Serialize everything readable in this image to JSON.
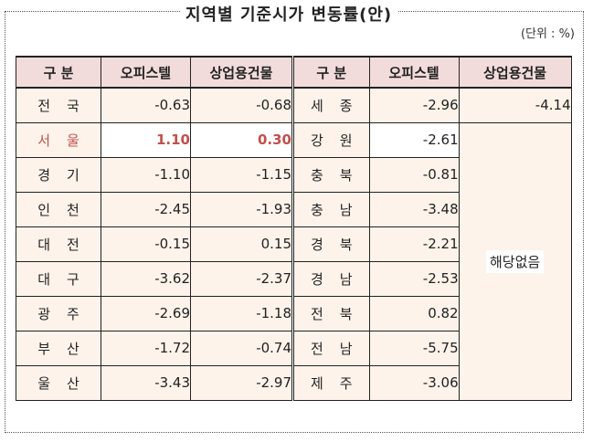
{
  "title": "지역별 기준시가 변동률(안)",
  "unit": "(단위 : %)",
  "headers": [
    "구 분",
    "오피스텔",
    "상업용건물",
    "구 분",
    "오피스텔",
    "상업용건물"
  ],
  "no_data_label": "해당없음",
  "left_rows": [
    {
      "region": "전국",
      "officetel": "-0.63",
      "commercial": "-0.68"
    },
    {
      "region": "서울",
      "officetel": "1.10",
      "commercial": "0.30"
    },
    {
      "region": "경기",
      "officetel": "-1.10",
      "commercial": "-1.15"
    },
    {
      "region": "인천",
      "officetel": "-2.45",
      "commercial": "-1.93"
    },
    {
      "region": "대전",
      "officetel": "-0.15",
      "commercial": "0.15"
    },
    {
      "region": "대구",
      "officetel": "-3.62",
      "commercial": "-2.37"
    },
    {
      "region": "광주",
      "officetel": "-2.69",
      "commercial": "-1.18"
    },
    {
      "region": "부산",
      "officetel": "-1.72",
      "commercial": "-0.74"
    },
    {
      "region": "울산",
      "officetel": "-3.43",
      "commercial": "-2.97"
    }
  ],
  "right_rows": [
    {
      "region": "세종",
      "officetel": "-2.96",
      "commercial": "-4.14"
    },
    {
      "region": "강원",
      "officetel": "-2.61"
    },
    {
      "region": "충북",
      "officetel": "-0.81"
    },
    {
      "region": "충남",
      "officetel": "-3.48"
    },
    {
      "region": "경북",
      "officetel": "-2.21"
    },
    {
      "region": "경남",
      "officetel": "-2.53"
    },
    {
      "region": "전북",
      "officetel": "0.82"
    },
    {
      "region": "전남",
      "officetel": "-5.75"
    },
    {
      "region": "제주",
      "officetel": "-3.06"
    }
  ]
}
